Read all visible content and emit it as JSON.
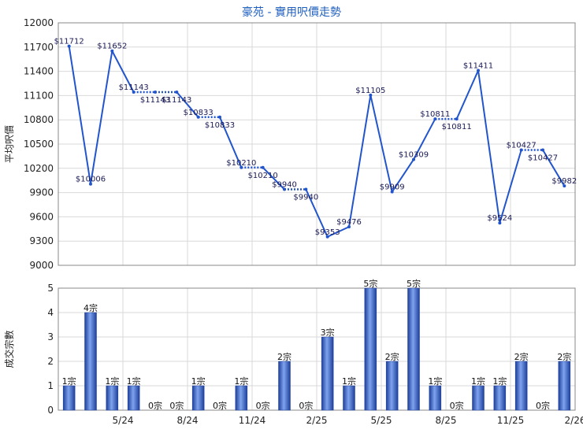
{
  "title": "豪苑 - 實用呎價走勢",
  "chart_data": [
    {
      "type": "line",
      "ylabel": "平均呎價",
      "ylim": [
        9000,
        12000
      ],
      "yticks": [
        9000,
        9300,
        9600,
        9900,
        10200,
        10500,
        10800,
        11100,
        11400,
        11700,
        12000
      ],
      "series": [
        {
          "values": [
            11712,
            10006,
            11652,
            11143,
            11143,
            11143,
            10833,
            10833,
            10210,
            10210,
            9940,
            9940,
            9353,
            9476,
            11105,
            9909,
            10309,
            10811,
            10811,
            11411,
            9524,
            10427,
            10427,
            9982
          ],
          "dotted_segments": [
            [
              3,
              5
            ],
            [
              6,
              7
            ],
            [
              8,
              9
            ],
            [
              10,
              11
            ],
            [
              17,
              18
            ],
            [
              21,
              22
            ]
          ]
        }
      ],
      "point_labels": [
        "$11712",
        "$10006",
        "$11652",
        "$11143",
        "$11143",
        "$11143",
        "$10833",
        "$10833",
        "$10210",
        "$10210",
        "$9940",
        "$9940",
        "$9353",
        "$9476",
        "$11105",
        "$9909",
        "$10309",
        "$10811",
        "$10811",
        "$11411",
        "$9524",
        "$10427",
        "$10427",
        "$9982"
      ],
      "color": "#2255cc"
    },
    {
      "type": "bar",
      "ylabel": "成交宗數",
      "ylim": [
        0,
        5
      ],
      "yticks": [
        0,
        1,
        2,
        3,
        4,
        5
      ],
      "categories": [
        "",
        "",
        "5/24",
        "",
        "",
        "8/24",
        "",
        "",
        "11/24",
        "",
        "",
        "2/25",
        "",
        "",
        "5/25",
        "",
        "",
        "8/25",
        "",
        "",
        "11/25",
        "",
        "",
        "2/26"
      ],
      "values": [
        1,
        4,
        1,
        1,
        0,
        0,
        1,
        0,
        1,
        0,
        2,
        0,
        3,
        1,
        5,
        2,
        5,
        1,
        0,
        1,
        1,
        2,
        0,
        2
      ],
      "bar_labels": [
        "1宗",
        "4宗",
        "1宗",
        "1宗",
        "0宗",
        "0宗",
        "1宗",
        "0宗",
        "1宗",
        "0宗",
        "2宗",
        "0宗",
        "3宗",
        "1宗",
        "5宗",
        "2宗",
        "5宗",
        "1宗",
        "0宗",
        "1宗",
        "1宗",
        "2宗",
        "0宗",
        "2宗"
      ],
      "color": "#2a5fc8"
    }
  ]
}
